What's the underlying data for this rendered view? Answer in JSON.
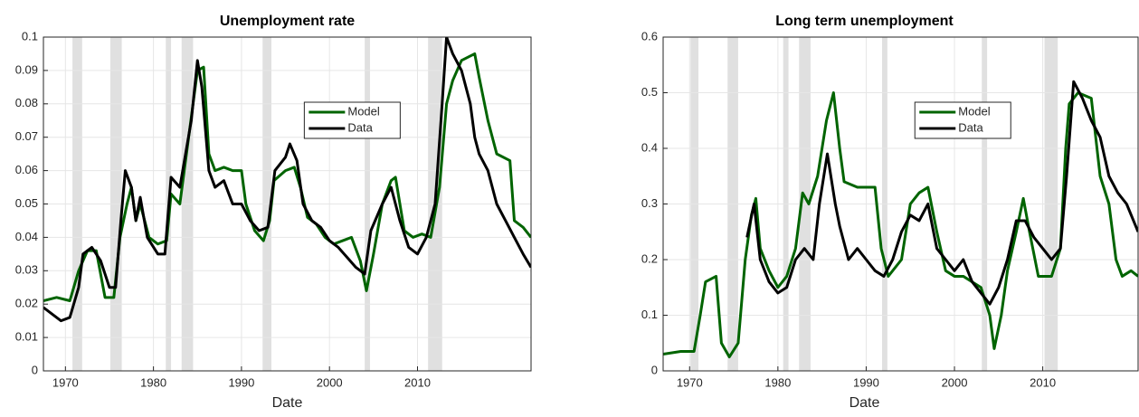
{
  "chart_data": [
    {
      "type": "line",
      "title": "Unemployment rate",
      "x_label": "Date",
      "xlim": [
        1967.5,
        2022.9
      ],
      "xticks": [
        1970,
        1980,
        1990,
        2000,
        2010
      ],
      "ylim": [
        0,
        0.1
      ],
      "yticks": [
        0,
        0.01,
        0.02,
        0.03,
        0.04,
        0.05,
        0.06,
        0.07,
        0.08,
        0.09,
        0.1
      ],
      "grid": true,
      "legend": "center",
      "shade_color": "#e0e0e0",
      "shaded_regions": [
        [
          1970.8,
          1971.9
        ],
        [
          1975.1,
          1976.4
        ],
        [
          1981.4,
          1982.0
        ],
        [
          1983.2,
          1984.5
        ],
        [
          1992.4,
          1993.4
        ],
        [
          2004.0,
          2004.6
        ],
        [
          2011.2,
          2012.8
        ]
      ],
      "series": [
        {
          "name": "Model",
          "color": "#006400",
          "x": [
            1967.5,
            1969,
            1970.5,
            1971.5,
            1972.5,
            1973.5,
            1974.5,
            1975.5,
            1976.2,
            1977,
            1977.5,
            1978,
            1978.5,
            1979.5,
            1980.5,
            1981.5,
            1982,
            1983,
            1984,
            1985,
            1985.7,
            1986.3,
            1987,
            1988,
            1989,
            1990,
            1990.5,
            1991.5,
            1992.5,
            1993.2,
            1993.7,
            1995,
            1996,
            1996.7,
            1997.5,
            1998.5,
            1999.5,
            2000.5,
            2001.5,
            2002.5,
            2003.5,
            2004.2,
            2005,
            2006,
            2007,
            2007.5,
            2008.5,
            2009.5,
            2010.5,
            2011.5,
            2012.5,
            2013.3,
            2014,
            2015,
            2016.5,
            2017,
            2018,
            2019,
            2020.5,
            2021,
            2022,
            2022.9
          ],
          "values": [
            0.021,
            0.022,
            0.021,
            0.03,
            0.036,
            0.036,
            0.022,
            0.022,
            0.04,
            0.05,
            0.055,
            0.045,
            0.05,
            0.04,
            0.038,
            0.039,
            0.053,
            0.05,
            0.07,
            0.09,
            0.091,
            0.065,
            0.06,
            0.061,
            0.06,
            0.06,
            0.05,
            0.042,
            0.039,
            0.045,
            0.057,
            0.06,
            0.061,
            0.055,
            0.046,
            0.044,
            0.04,
            0.038,
            0.039,
            0.04,
            0.033,
            0.024,
            0.035,
            0.05,
            0.057,
            0.058,
            0.042,
            0.04,
            0.041,
            0.04,
            0.055,
            0.08,
            0.087,
            0.093,
            0.095,
            0.088,
            0.075,
            0.065,
            0.063,
            0.045,
            0.043,
            0.04
          ]
        },
        {
          "name": "Data",
          "color": "#000000",
          "x": [
            1967.5,
            1968.5,
            1969.5,
            1970.5,
            1971.5,
            1972,
            1973,
            1974,
            1975,
            1975.7,
            1976.3,
            1976.8,
            1977.5,
            1978,
            1978.5,
            1979.3,
            1980.5,
            1981.3,
            1982,
            1983,
            1984.3,
            1985,
            1985.5,
            1986.3,
            1987,
            1988,
            1989,
            1990,
            1991,
            1992,
            1993,
            1993.8,
            1995,
            1995.5,
            1996.3,
            1997,
            1998,
            1999,
            2000,
            2001,
            2002,
            2003,
            2004,
            2004.7,
            2006,
            2007,
            2008,
            2009,
            2010,
            2011,
            2012,
            2012.8,
            2013.3,
            2014,
            2015,
            2016,
            2016.5,
            2017,
            2018,
            2019,
            2020,
            2021,
            2022,
            2022.9
          ],
          "values": [
            0.019,
            0.017,
            0.015,
            0.016,
            0.025,
            0.035,
            0.037,
            0.033,
            0.025,
            0.025,
            0.045,
            0.06,
            0.055,
            0.045,
            0.052,
            0.04,
            0.035,
            0.035,
            0.058,
            0.055,
            0.075,
            0.093,
            0.085,
            0.06,
            0.055,
            0.057,
            0.05,
            0.05,
            0.045,
            0.042,
            0.043,
            0.06,
            0.064,
            0.068,
            0.063,
            0.05,
            0.045,
            0.043,
            0.039,
            0.037,
            0.034,
            0.031,
            0.029,
            0.042,
            0.05,
            0.055,
            0.045,
            0.037,
            0.035,
            0.04,
            0.05,
            0.08,
            0.1,
            0.095,
            0.09,
            0.08,
            0.07,
            0.065,
            0.06,
            0.05,
            0.045,
            0.04,
            0.035,
            0.031
          ]
        }
      ]
    },
    {
      "type": "line",
      "title": "Long term unemployment",
      "x_label": "Date",
      "xlim": [
        1967,
        2020.8
      ],
      "xticks": [
        1970,
        1980,
        1990,
        2000,
        2010
      ],
      "ylim": [
        0,
        0.6
      ],
      "yticks": [
        0,
        0.1,
        0.2,
        0.3,
        0.4,
        0.5,
        0.6
      ],
      "grid": true,
      "legend": "center",
      "shade_color": "#e0e0e0",
      "shaded_regions": [
        [
          1970.1,
          1971.0
        ],
        [
          1974.3,
          1975.5
        ],
        [
          1980.6,
          1981.2
        ],
        [
          1982.4,
          1983.7
        ],
        [
          1991.8,
          1992.4
        ],
        [
          2003.1,
          2003.7
        ],
        [
          2010.2,
          2011.7
        ]
      ],
      "series": [
        {
          "name": "Model",
          "color": "#006400",
          "x": [
            1967,
            1969,
            1970.5,
            1971.2,
            1971.8,
            1973,
            1973.6,
            1974.5,
            1975.5,
            1976.3,
            1977,
            1977.5,
            1978,
            1979,
            1980,
            1981,
            1982,
            1982.8,
            1983.5,
            1984.5,
            1985.5,
            1986.3,
            1987,
            1987.5,
            1989,
            1991,
            1991.7,
            1992.5,
            1994,
            1995,
            1996,
            1997,
            1998,
            1999,
            2000,
            2001,
            2002,
            2003,
            2004,
            2004.5,
            2005.3,
            2006,
            2007,
            2007.8,
            2008.5,
            2009.5,
            2011,
            2012,
            2012.6,
            2013,
            2014,
            2015.5,
            2016.5,
            2017.5,
            2018.3,
            2019,
            2020,
            2020.8
          ],
          "values": [
            0.03,
            0.035,
            0.035,
            0.1,
            0.16,
            0.17,
            0.05,
            0.025,
            0.05,
            0.2,
            0.28,
            0.31,
            0.22,
            0.18,
            0.15,
            0.17,
            0.22,
            0.32,
            0.3,
            0.35,
            0.45,
            0.5,
            0.4,
            0.34,
            0.33,
            0.33,
            0.22,
            0.17,
            0.2,
            0.3,
            0.32,
            0.33,
            0.25,
            0.18,
            0.17,
            0.17,
            0.16,
            0.15,
            0.1,
            0.04,
            0.1,
            0.18,
            0.25,
            0.31,
            0.25,
            0.17,
            0.17,
            0.22,
            0.4,
            0.48,
            0.5,
            0.49,
            0.35,
            0.3,
            0.2,
            0.17,
            0.18,
            0.17
          ]
        },
        {
          "name": "Data",
          "color": "#000000",
          "x": [
            1976.5,
            1977.3,
            1978,
            1979,
            1980,
            1981,
            1982,
            1983,
            1984,
            1984.7,
            1985.6,
            1986.5,
            1987,
            1988,
            1989,
            1990,
            1991,
            1992,
            1993,
            1994,
            1995,
            1996,
            1997,
            1998,
            1999,
            2000,
            2001,
            2002,
            2003,
            2004,
            2005,
            2006,
            2007,
            2008,
            2009,
            2010,
            2011,
            2012,
            2012.7,
            2013.5,
            2014.5,
            2015.5,
            2016.5,
            2017.5,
            2018.5,
            2019.5,
            2020.8
          ],
          "values": [
            0.24,
            0.3,
            0.2,
            0.16,
            0.14,
            0.15,
            0.2,
            0.22,
            0.2,
            0.3,
            0.39,
            0.3,
            0.26,
            0.2,
            0.22,
            0.2,
            0.18,
            0.17,
            0.2,
            0.25,
            0.28,
            0.27,
            0.3,
            0.22,
            0.2,
            0.18,
            0.2,
            0.16,
            0.14,
            0.12,
            0.15,
            0.2,
            0.27,
            0.27,
            0.24,
            0.22,
            0.2,
            0.22,
            0.35,
            0.52,
            0.49,
            0.45,
            0.42,
            0.35,
            0.32,
            0.3,
            0.25
          ]
        }
      ]
    }
  ]
}
